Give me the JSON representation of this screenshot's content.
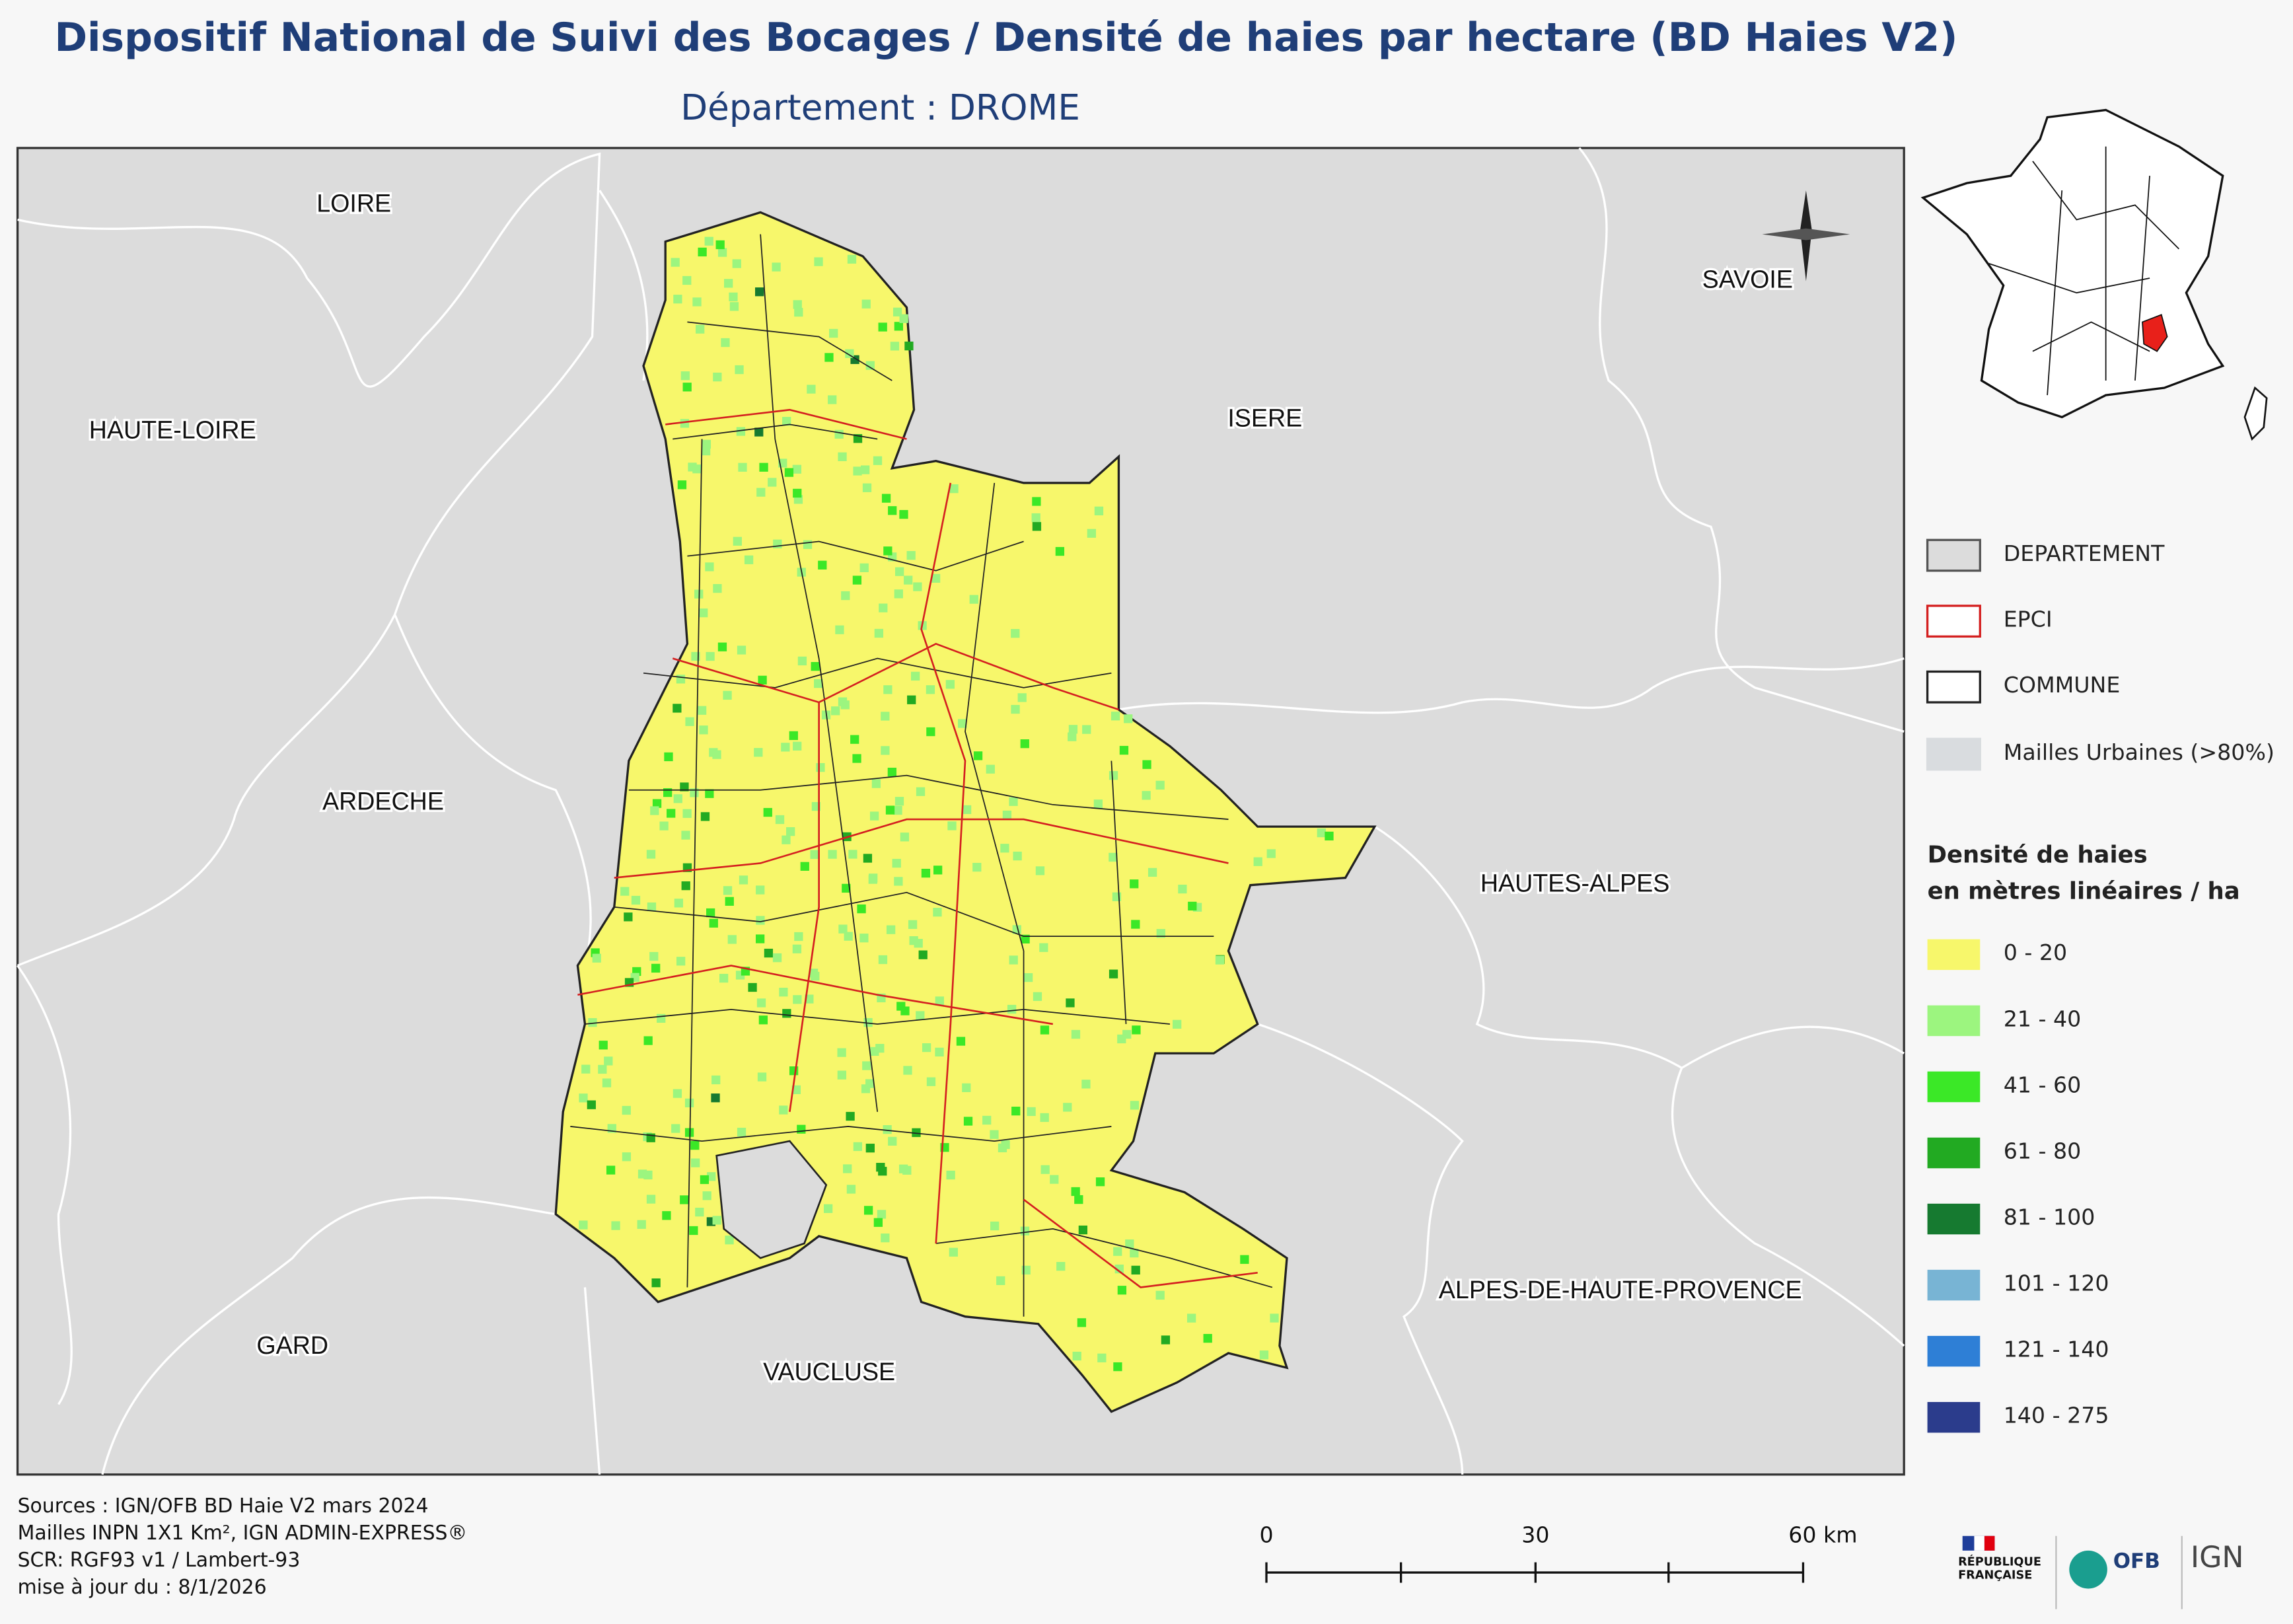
{
  "header": {
    "title": "Dispositif National de Suivi des Bocages / Densité de haies par hectare (BD Haies V2)",
    "subtitle": "Département :  DROME"
  },
  "map": {
    "labels": [
      {
        "text": "LOIRE",
        "pos": "nw"
      },
      {
        "text": "HAUTE-LOIRE",
        "pos": "w"
      },
      {
        "text": "ARDECHE",
        "pos": "w"
      },
      {
        "text": "GARD",
        "pos": "sw"
      },
      {
        "text": "VAUCLUSE",
        "pos": "s"
      },
      {
        "text": "ISERE",
        "pos": "n"
      },
      {
        "text": "SAVOIE",
        "pos": "ne"
      },
      {
        "text": "HAUTES-ALPES",
        "pos": "e"
      },
      {
        "text": "ALPES-DE-HAUTE-PROVENCE",
        "pos": "se"
      }
    ]
  },
  "legend": {
    "layers": [
      {
        "label": "DEPARTEMENT",
        "fill": "#dcdcdc",
        "stroke": "#555555"
      },
      {
        "label": "EPCI",
        "fill": "#ffffff",
        "stroke": "#d42020"
      },
      {
        "label": "COMMUNE",
        "fill": "#ffffff",
        "stroke": "#222222"
      },
      {
        "label": "Mailles Urbaines (>80%)",
        "fill": "#d9dcdf",
        "stroke": "#d9dcdf"
      }
    ],
    "density_title": [
      "Densité de haies",
      "en mètres linéaires / ha"
    ],
    "classes": [
      {
        "label": "0 - 20",
        "color": "#f7f76b"
      },
      {
        "label": "21 - 40",
        "color": "#9cf57f"
      },
      {
        "label": "41 - 60",
        "color": "#3be827"
      },
      {
        "label": "61 - 80",
        "color": "#22aa22"
      },
      {
        "label": "81 - 100",
        "color": "#167a30"
      },
      {
        "label": "101 - 120",
        "color": "#78b4d4"
      },
      {
        "label": "121 - 140",
        "color": "#2e7fd6"
      },
      {
        "label": "140 - 275",
        "color": "#2b3c8c"
      }
    ]
  },
  "scale_bar": [
    "0",
    "30",
    "60 km"
  ],
  "sources": [
    "Sources : IGN/OFB BD Haie V2 mars 2024",
    "Mailles INPN 1X1 Km²,  IGN ADMIN-EXPRESS®",
    "SCR: RGF93 v1 / Lambert-93",
    "mise à jour du  : 8/1/2026"
  ],
  "logos": {
    "republique": [
      "RÉPUBLIQUE",
      "FRANÇAISE"
    ],
    "ofb": "OFB",
    "ign": "IGN"
  }
}
